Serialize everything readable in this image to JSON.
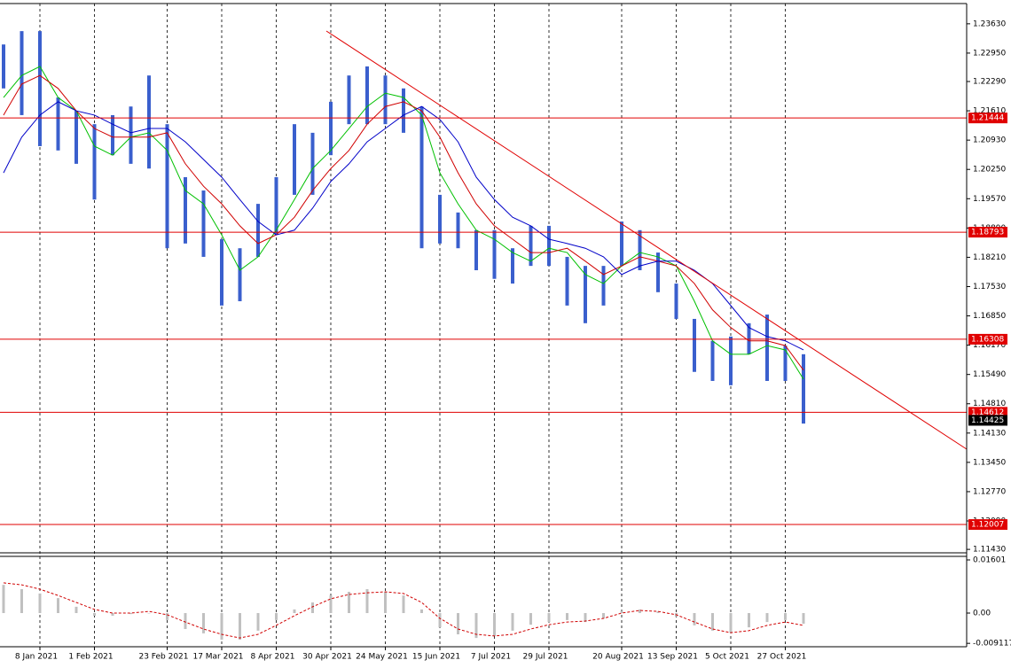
{
  "chart_data": [
    {
      "type": "ohlc",
      "categories": [
        null,
        null,
        "8 Jan 2021",
        null,
        null,
        "1 Feb 2021",
        null,
        null,
        null,
        "23 Feb 2021",
        null,
        null,
        "17 Mar 2021",
        null,
        null,
        "8 Apr 2021",
        null,
        null,
        "30 Apr 2021",
        null,
        null,
        "24 May 2021",
        null,
        null,
        "15 Jun 2021",
        null,
        null,
        "7 Jul 2021",
        null,
        null,
        "29 Jul 2021",
        null,
        null,
        null,
        "20 Aug 2021",
        null,
        null,
        "13 Sep 2021",
        null,
        null,
        "5 Oct 2021",
        null,
        null,
        "27 Oct 2021",
        null
      ],
      "high": [
        1.2315,
        1.2346,
        1.2346,
        1.2192,
        1.2161,
        1.213,
        1.2151,
        1.2171,
        1.2243,
        1.213,
        1.2007,
        1.1976,
        1.1863,
        1.1842,
        1.1945,
        1.2007,
        1.213,
        1.211,
        1.2182,
        1.2243,
        1.2264,
        1.2243,
        1.2213,
        1.2171,
        1.1966,
        1.1925,
        1.1884,
        1.1884,
        1.1842,
        1.1894,
        1.1894,
        1.1822,
        1.1801,
        1.1801,
        1.1904,
        1.1884,
        1.1832,
        1.176,
        1.1678,
        1.1627,
        1.1637,
        1.1668,
        1.1688,
        1.1616,
        1.1596
      ],
      "low": [
        1.2213,
        1.2151,
        1.2079,
        1.2069,
        1.2038,
        1.1955,
        1.2058,
        1.2038,
        1.2027,
        1.1842,
        1.1853,
        1.1822,
        1.1709,
        1.1719,
        1.1822,
        1.1873,
        1.1966,
        1.1966,
        1.2058,
        1.213,
        1.213,
        1.213,
        1.211,
        1.1842,
        1.1853,
        1.1842,
        1.1791,
        1.1771,
        1.176,
        1.1801,
        1.1801,
        1.1709,
        1.1668,
        1.1709,
        1.1801,
        1.1791,
        1.174,
        1.1678,
        1.1555,
        1.1534,
        1.1524,
        1.1596,
        1.1534,
        1.1534,
        1.1435
      ],
      "color": "#3a5fcd",
      "series": [
        {
          "color": "#00c000",
          "values": [
            1.2192,
            1.2243,
            1.2264,
            1.2192,
            1.2161,
            1.2079,
            1.2058,
            1.21,
            1.211,
            1.2069,
            1.1976,
            1.1945,
            1.1873,
            1.1791,
            1.1822,
            1.1884,
            1.1955,
            1.2027,
            1.2069,
            1.212,
            1.2171,
            1.2202,
            1.2192,
            1.2151,
            1.2017,
            1.1945,
            1.1884,
            1.1863,
            1.1832,
            1.1812,
            1.1842,
            1.1832,
            1.1781,
            1.176,
            1.1801,
            1.1832,
            1.1822,
            1.1801,
            1.1719,
            1.1627,
            1.1596,
            1.1596,
            1.1616,
            1.1606,
            1.1538
          ]
        },
        {
          "color": "#d00000",
          "values": [
            1.2151,
            1.2223,
            1.2243,
            1.2213,
            1.2161,
            1.212,
            1.21,
            1.21,
            1.21,
            1.211,
            1.2038,
            1.1986,
            1.1945,
            1.1894,
            1.1853,
            1.1873,
            1.1914,
            1.1976,
            1.2027,
            1.2069,
            1.213,
            1.2171,
            1.2182,
            1.2161,
            1.21,
            1.2017,
            1.1945,
            1.1894,
            1.1863,
            1.1832,
            1.1832,
            1.1842,
            1.1812,
            1.1781,
            1.1801,
            1.1822,
            1.1812,
            1.1801,
            1.176,
            1.1699,
            1.1658,
            1.1627,
            1.1627,
            1.1616,
            1.1559
          ]
        },
        {
          "color": "#0000c8",
          "values": [
            1.2017,
            1.21,
            1.2151,
            1.2182,
            1.2161,
            1.2151,
            1.213,
            1.211,
            1.212,
            1.212,
            1.2089,
            1.2048,
            1.2007,
            1.1955,
            1.1904,
            1.1873,
            1.1884,
            1.1935,
            1.1997,
            1.2038,
            1.2089,
            1.212,
            1.2151,
            1.2171,
            1.2141,
            1.2089,
            1.2007,
            1.1955,
            1.1914,
            1.1894,
            1.1863,
            1.1853,
            1.1842,
            1.1822,
            1.1781,
            1.1801,
            1.1812,
            1.1812,
            1.1791,
            1.176,
            1.1709,
            1.1658,
            1.1637,
            1.1627,
            1.1606
          ]
        }
      ],
      "levels": [
        1.21444,
        1.18793,
        1.16308,
        1.14612,
        1.12007
      ],
      "level_color": "#e00000",
      "last_price": 1.14425,
      "ylim": [
        1.1135,
        1.241
      ],
      "yticks": [
        {
          "value": 1.2363,
          "label": "1.23630"
        },
        {
          "value": 1.2295,
          "label": "1.22950"
        },
        {
          "value": 1.2229,
          "label": "1.22290"
        },
        {
          "value": 1.2161,
          "label": "1.21610"
        },
        {
          "value": 1.2093,
          "label": "1.20930"
        },
        {
          "value": 1.2025,
          "label": "1.20250"
        },
        {
          "value": 1.1957,
          "label": "1.19570"
        },
        {
          "value": 1.1889,
          "label": "1.18890"
        },
        {
          "value": 1.1821,
          "label": "1.18210"
        },
        {
          "value": 1.1753,
          "label": "1.17530"
        },
        {
          "value": 1.1685,
          "label": "1.16850"
        },
        {
          "value": 1.1617,
          "label": "1.16170"
        },
        {
          "value": 1.1549,
          "label": "1.15490"
        },
        {
          "value": 1.1481,
          "label": "1.14810"
        },
        {
          "value": 1.1413,
          "label": "1.14130"
        },
        {
          "value": 1.1345,
          "label": "1.13450"
        },
        {
          "value": 1.1277,
          "label": "1.12770"
        },
        {
          "value": 1.1209,
          "label": "1.12090"
        },
        {
          "value": 1.1143,
          "label": "1.11430"
        }
      ]
    },
    {
      "type": "macd",
      "values": [
        0.0085,
        0.0072,
        0.0059,
        0.0045,
        0.0019,
        -0.0008,
        -0.0008,
        -0.0003,
        0,
        -0.0021,
        -0.0048,
        -0.0061,
        -0.008,
        -0.008,
        -0.0053,
        -0.0021,
        0.0011,
        0.0032,
        0.0053,
        0.0064,
        0.0072,
        0.0064,
        0.0053,
        0.0011,
        -0.0043,
        -0.0064,
        -0.0075,
        -0.0069,
        -0.0053,
        -0.0035,
        -0.0027,
        -0.0021,
        -0.0027,
        -0.0016,
        0.0005,
        0.0011,
        0.0005,
        -0.0011,
        -0.0037,
        -0.0053,
        -0.0059,
        -0.0043,
        -0.0027,
        -0.0021,
        -0.0032
      ],
      "color": "#c0c0c0",
      "signal": [
        0.0091,
        0.0085,
        0.0072,
        0.0053,
        0.0032,
        0.0011,
        0,
        0,
        0.0005,
        -0.0005,
        -0.0027,
        -0.0048,
        -0.0064,
        -0.0075,
        -0.0064,
        -0.0037,
        -0.0008,
        0.0019,
        0.0043,
        0.0056,
        0.0061,
        0.0064,
        0.0059,
        0.0032,
        -0.0016,
        -0.0048,
        -0.0064,
        -0.0069,
        -0.0064,
        -0.0048,
        -0.0035,
        -0.0027,
        -0.0024,
        -0.0016,
        0,
        0.0008,
        0.0005,
        -0.0005,
        -0.0027,
        -0.0048,
        -0.0059,
        -0.0053,
        -0.0037,
        -0.0027,
        -0.0037
      ],
      "signal_color": "#d00000",
      "ylim": [
        -0.01014,
        0.01708
      ],
      "yticks": [
        0.01601,
        {
          "value": 0,
          "label": "0.00"
        },
        -0.009117
      ]
    }
  ]
}
